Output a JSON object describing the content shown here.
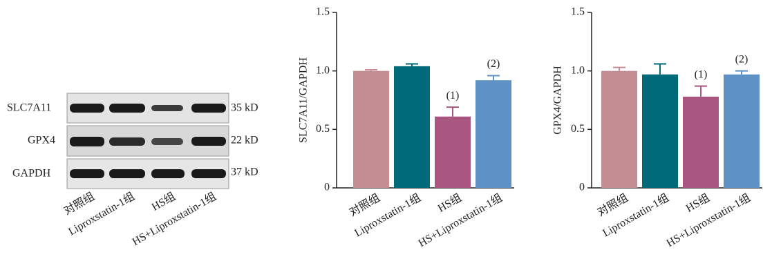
{
  "blot": {
    "rows": [
      "SLC7A11",
      "GPX4",
      "GAPDH"
    ],
    "sizes": [
      "35 kD",
      "22 kD",
      "37 kD"
    ],
    "lanes": [
      "对照组",
      "Liproxstatin-1组",
      "HS组",
      "HS+Liproxstatin-1组"
    ]
  },
  "chart_data": [
    {
      "type": "bar",
      "ylabel": "SLC7A11/GAPDH",
      "categories": [
        "对照组",
        "Liproxstatin-1组",
        "HS组",
        "HS+Liproxstatin-1组"
      ],
      "values": [
        1.0,
        1.04,
        0.61,
        0.92
      ],
      "errors": [
        0.01,
        0.02,
        0.08,
        0.04
      ],
      "colors": [
        "#c48c93",
        "#006a78",
        "#a8557f",
        "#5e92c4"
      ],
      "value_annotations": [
        null,
        null,
        "(1)",
        "(2)"
      ],
      "ylim": [
        0,
        1.5
      ],
      "yticks": [
        0,
        0.5,
        {
          "value": 1,
          "label": "1.0"
        },
        1.5
      ]
    },
    {
      "type": "bar",
      "ylabel": "GPX4/GAPDH",
      "categories": [
        "对照组",
        "Liproxstatin-1组",
        "HS组",
        "HS+Liproxstatin-1组"
      ],
      "values": [
        1.0,
        0.97,
        0.78,
        0.97
      ],
      "errors": [
        0.03,
        0.09,
        0.09,
        0.03
      ],
      "colors": [
        "#c48c93",
        "#006a78",
        "#a8557f",
        "#5e92c4"
      ],
      "value_annotations": [
        null,
        null,
        "(1)",
        "(2)"
      ],
      "ylim": [
        0,
        1.5
      ],
      "yticks": [
        0,
        0.5,
        {
          "value": 1,
          "label": "1.0"
        },
        1.5
      ]
    }
  ]
}
